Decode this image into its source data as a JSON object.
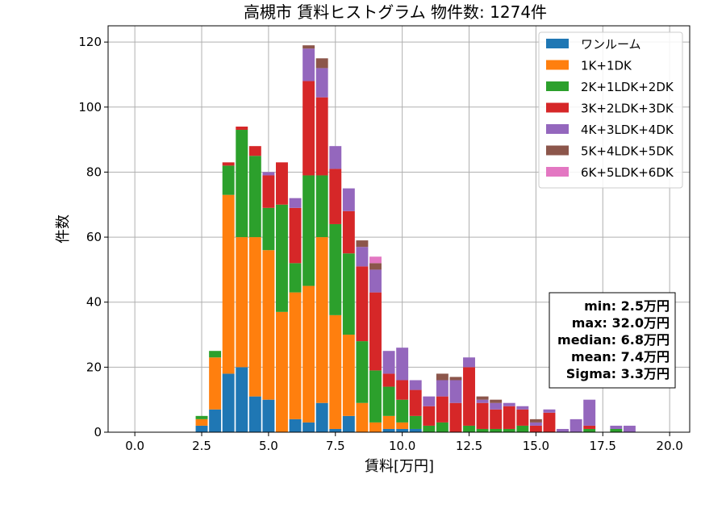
{
  "chart_data": {
    "type": "bar",
    "stacked": true,
    "title": "高槻市 賃料ヒストグラム 物件数: 1274件",
    "xlabel": "賃料[万円]",
    "ylabel": "件数",
    "xlim": [
      -1.0,
      20.75
    ],
    "ylim": [
      0,
      125
    ],
    "xticks": [
      0.0,
      2.5,
      5.0,
      7.5,
      10.0,
      12.5,
      15.0,
      17.5,
      20.0
    ],
    "yticks": [
      0,
      20,
      40,
      60,
      80,
      100,
      120
    ],
    "grid": true,
    "legend_position": "top-right",
    "bin_width": 0.5,
    "bin_starts": [
      2.25,
      2.75,
      3.25,
      3.75,
      4.25,
      4.75,
      5.25,
      5.75,
      6.25,
      6.75,
      7.25,
      7.75,
      8.25,
      8.75,
      9.25,
      9.75,
      10.25,
      10.75,
      11.25,
      11.75,
      12.25,
      12.75,
      13.25,
      13.75,
      14.25,
      14.75,
      15.25,
      15.75,
      16.25,
      16.75,
      17.25,
      17.75,
      18.25,
      18.75
    ],
    "series": [
      {
        "name": "ワンルーム",
        "color": "#1f77b4",
        "values": [
          2,
          7,
          18,
          20,
          11,
          10,
          0,
          4,
          3,
          9,
          1,
          5,
          0,
          0,
          1,
          1,
          1,
          0,
          0,
          0,
          0,
          0,
          0,
          0,
          0,
          0,
          0,
          0,
          0,
          0,
          0,
          0,
          0,
          0
        ]
      },
      {
        "name": "1K+1DK",
        "color": "#ff7f0e",
        "values": [
          2,
          16,
          55,
          40,
          49,
          46,
          37,
          39,
          42,
          51,
          35,
          25,
          9,
          3,
          4,
          2,
          0,
          0,
          0,
          0,
          0,
          0,
          0,
          0,
          0,
          0,
          0,
          0,
          0,
          0,
          0,
          0,
          0,
          0
        ]
      },
      {
        "name": "2K+1LDK+2DK",
        "color": "#2ca02c",
        "values": [
          1,
          2,
          9,
          33,
          25,
          13,
          33,
          9,
          34,
          19,
          28,
          25,
          19,
          16,
          9,
          7,
          4,
          2,
          3,
          0,
          2,
          1,
          1,
          1,
          2,
          0,
          0,
          0,
          0,
          1,
          0,
          1,
          0,
          0
        ]
      },
      {
        "name": "3K+2LDK+3DK",
        "color": "#d62728",
        "values": [
          0,
          0,
          1,
          1,
          3,
          10,
          13,
          17,
          29,
          24,
          17,
          13,
          23,
          24,
          4,
          6,
          8,
          6,
          8,
          9,
          18,
          8,
          6,
          7,
          5,
          2,
          6,
          0,
          0,
          1,
          0,
          0,
          0,
          0
        ]
      },
      {
        "name": "4K+3LDK+4DK",
        "color": "#9467bd",
        "values": [
          0,
          0,
          0,
          0,
          0,
          1,
          0,
          3,
          10,
          9,
          7,
          7,
          6,
          7,
          7,
          10,
          3,
          3,
          5,
          7,
          3,
          1,
          2,
          1,
          1,
          1,
          1,
          1,
          4,
          8,
          0,
          1,
          2,
          0
        ]
      },
      {
        "name": "5K+4LDK+5DK",
        "color": "#8c564b",
        "values": [
          0,
          0,
          0,
          0,
          0,
          0,
          0,
          0,
          1,
          3,
          0,
          0,
          2,
          2,
          0,
          0,
          0,
          0,
          2,
          1,
          0,
          1,
          1,
          0,
          0,
          1,
          0,
          0,
          0,
          0,
          0,
          0,
          0,
          0
        ]
      },
      {
        "name": "6K+5LDK+6DK",
        "color": "#e377c2",
        "values": [
          0,
          0,
          0,
          0,
          0,
          0,
          0,
          0,
          0,
          0,
          0,
          0,
          0,
          2,
          0,
          0,
          0,
          0,
          0,
          0,
          0,
          0,
          0,
          0,
          0,
          0,
          0,
          0,
          0,
          0,
          0,
          0,
          0,
          0
        ]
      }
    ],
    "stats": {
      "min": "min: 2.5万円",
      "max": "max: 32.0万円",
      "median": "median: 6.8万円",
      "mean": "mean: 7.4万円",
      "sigma": "Sigma: 3.3万円"
    }
  }
}
